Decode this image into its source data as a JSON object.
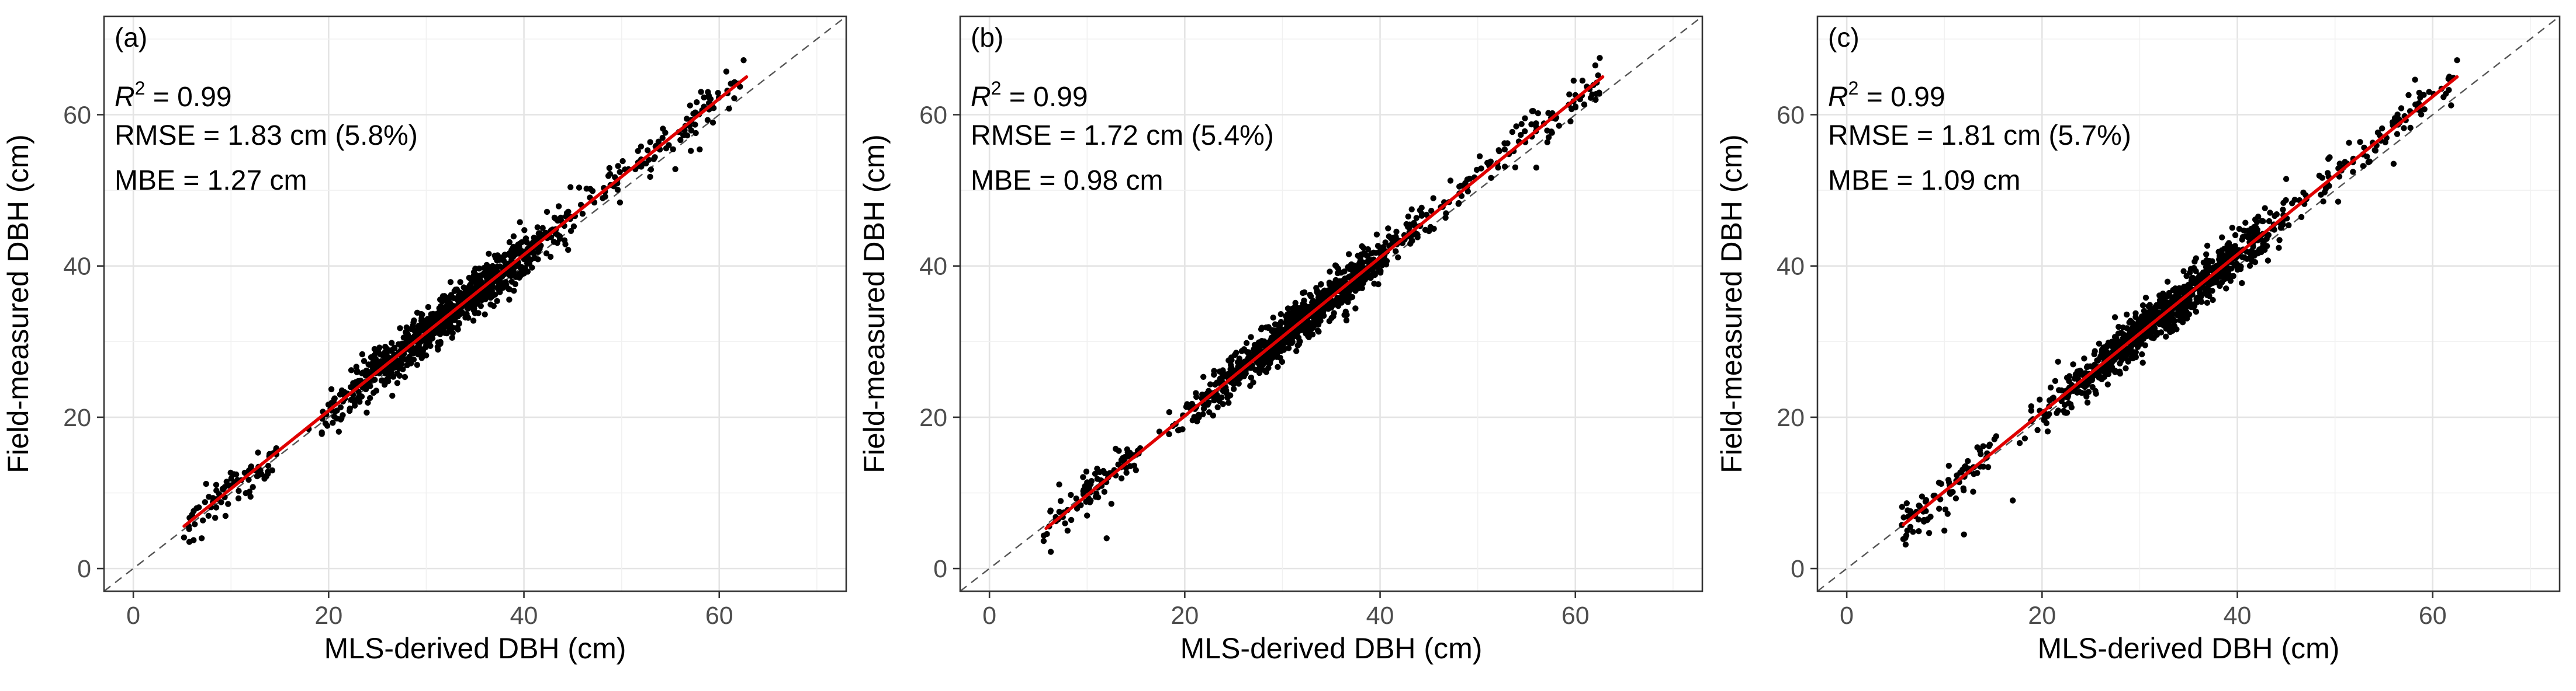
{
  "chart_data": [
    {
      "type": "scatter",
      "panel_label": "(a)",
      "xlabel": "MLS-derived DBH (cm)",
      "ylabel": "Field-measured DBH (cm)",
      "xlim": [
        -3,
        73
      ],
      "ylim": [
        -3,
        73
      ],
      "x_ticks": [
        0,
        20,
        40,
        60
      ],
      "y_ticks": [
        0,
        20,
        40,
        60
      ],
      "grid": true,
      "annotations": {
        "r2_label": "R",
        "r2_sup": "2",
        "r2_value": " = 0.99",
        "rmse": "RMSE = 1.83 cm (5.8%)",
        "mbe": "MBE = 1.27 cm"
      },
      "reference_line": {
        "style": "dashed",
        "color": "#555555",
        "x": [
          -3,
          73
        ],
        "y": [
          -3,
          73
        ]
      },
      "fit_line": {
        "color": "#e00000",
        "x": [
          5.2,
          62.8
        ],
        "y": [
          5.6,
          65.0
        ]
      },
      "points": {
        "color": "#000000",
        "n": 1100,
        "x_range": [
          5,
          62.5
        ],
        "fit_slope": 1.03,
        "fit_intercept": 0.3,
        "noise_sd": 1.5,
        "extremes": [
          [
            62.5,
            67.2
          ],
          [
            61,
            60.8
          ],
          [
            58,
            55.4
          ],
          [
            55.5,
            52.8
          ],
          [
            12,
            9.5
          ],
          [
            7,
            4.0
          ]
        ]
      }
    },
    {
      "type": "scatter",
      "panel_label": "(b)",
      "xlabel": "MLS-derived DBH (cm)",
      "ylabel": "Field-measured DBH (cm)",
      "xlim": [
        -3,
        73
      ],
      "ylim": [
        -3,
        73
      ],
      "x_ticks": [
        0,
        20,
        40,
        60
      ],
      "y_ticks": [
        0,
        20,
        40,
        60
      ],
      "grid": true,
      "annotations": {
        "r2_label": "R",
        "r2_sup": "2",
        "r2_value": " = 0.99",
        "rmse": "RMSE = 1.72 cm (5.4%)",
        "mbe": "MBE = 0.98 cm"
      },
      "reference_line": {
        "style": "dashed",
        "color": "#555555",
        "x": [
          -3,
          73
        ],
        "y": [
          -3,
          73
        ]
      },
      "fit_line": {
        "color": "#e00000",
        "x": [
          5.8,
          62.8
        ],
        "y": [
          5.3,
          65.0
        ]
      },
      "points": {
        "color": "#000000",
        "n": 1100,
        "x_range": [
          5.5,
          62.5
        ],
        "fit_slope": 1.04,
        "fit_intercept": -0.5,
        "noise_sd": 1.4,
        "extremes": [
          [
            62.5,
            67.5
          ],
          [
            56,
            53.0
          ],
          [
            12,
            4.0
          ],
          [
            10,
            7.0
          ],
          [
            8,
            5.0
          ],
          [
            15,
            13.0
          ]
        ]
      }
    },
    {
      "type": "scatter",
      "panel_label": "(c)",
      "xlabel": "MLS-derived DBH (cm)",
      "ylabel": "Field-measured DBH (cm)",
      "xlim": [
        -3,
        73
      ],
      "ylim": [
        -3,
        73
      ],
      "x_ticks": [
        0,
        20,
        40,
        60
      ],
      "y_ticks": [
        0,
        20,
        40,
        60
      ],
      "grid": true,
      "annotations": {
        "r2_label": "R",
        "r2_sup": "2",
        "r2_value": " = 0.99",
        "rmse": "RMSE = 1.81 cm (5.7%)",
        "mbe": "MBE = 1.09 cm"
      },
      "reference_line": {
        "style": "dashed",
        "color": "#555555",
        "x": [
          -3,
          73
        ],
        "y": [
          -3,
          73
        ]
      },
      "fit_line": {
        "color": "#e00000",
        "x": [
          5.8,
          62.5
        ],
        "y": [
          5.8,
          65.0
        ]
      },
      "points": {
        "color": "#000000",
        "n": 1100,
        "x_range": [
          5.5,
          62.5
        ],
        "fit_slope": 1.045,
        "fit_intercept": -0.3,
        "noise_sd": 1.5,
        "extremes": [
          [
            62.5,
            67.2
          ],
          [
            17,
            9.0
          ],
          [
            12,
            4.5
          ],
          [
            10,
            5.0
          ],
          [
            56,
            53.5
          ],
          [
            45,
            51.5
          ]
        ]
      }
    }
  ]
}
